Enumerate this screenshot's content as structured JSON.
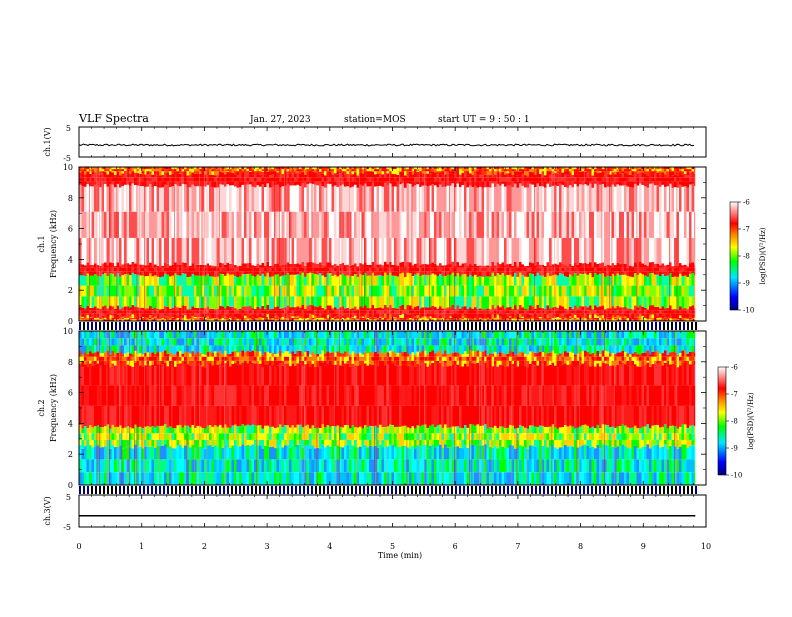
{
  "header": {
    "title": "VLF Spectra",
    "date": "Jan. 27, 2023",
    "station": "station=MOS",
    "start": "start  UT =   9 : 50 : 1"
  },
  "colors": {
    "spectrum_low": "#00007f",
    "spectrum_mid": "#00ff00",
    "spectrum_high": "#ff0000",
    "trace": "#000000"
  },
  "chart_data": [
    {
      "type": "line",
      "ylabel": "ch.1(V)",
      "ylim": [
        -5,
        5
      ],
      "yticks": [
        "5",
        "-5"
      ],
      "x": [
        0,
        9.83
      ],
      "y": [
        -1,
        -1
      ]
    },
    {
      "type": "heatmap",
      "ylabel": "ch.1\nFrequency (kHz)",
      "ylabel_lines": [
        "ch.1",
        "Frequency (kHz)"
      ],
      "ylim": [
        0,
        10
      ],
      "yticks": [
        "0",
        "2",
        "4",
        "6",
        "8",
        "10"
      ],
      "xlim": [
        0,
        10
      ],
      "data_end": 9.83,
      "colorbar": {
        "label": "log(PSD)(V²/Hz)",
        "range": [
          -10,
          -6
        ],
        "ticks": [
          "-6",
          "-7",
          "-8",
          "-9",
          "-10"
        ]
      },
      "bands": [
        {
          "from": 0.0,
          "to": 0.3,
          "level": "mid-high"
        },
        {
          "from": 0.3,
          "to": 0.9,
          "level": "high"
        },
        {
          "from": 0.9,
          "to": 3.0,
          "level": "mid"
        },
        {
          "from": 3.0,
          "to": 3.7,
          "level": "high"
        },
        {
          "from": 3.7,
          "to": 8.8,
          "level": "upper"
        },
        {
          "from": 8.8,
          "to": 9.6,
          "level": "high"
        },
        {
          "from": 9.6,
          "to": 10.0,
          "level": "mid-high"
        }
      ]
    },
    {
      "type": "heatmap",
      "ylabel": "ch.2\nFrequency (kHz)",
      "ylabel_lines": [
        "ch.2",
        "Frequency (kHz)"
      ],
      "ylim": [
        0,
        10
      ],
      "yticks": [
        "0",
        "2",
        "4",
        "6",
        "8",
        "10"
      ],
      "xlim": [
        0,
        10
      ],
      "data_end": 9.83,
      "colorbar": {
        "label": "log(PSD)(V²/Hz)",
        "range": [
          -10,
          -6
        ],
        "ticks": [
          "-6",
          "-7",
          "-8",
          "-9",
          "-10"
        ]
      },
      "bands": [
        {
          "from": 0.0,
          "to": 2.5,
          "level": "low-mid"
        },
        {
          "from": 2.5,
          "to": 3.8,
          "level": "mid"
        },
        {
          "from": 3.8,
          "to": 7.8,
          "level": "high"
        },
        {
          "from": 7.8,
          "to": 8.6,
          "level": "mid-high"
        },
        {
          "from": 8.6,
          "to": 10.0,
          "level": "low-mid"
        }
      ]
    },
    {
      "type": "line",
      "ylabel": "ch.3(V)",
      "ylim": [
        -5,
        5
      ],
      "yticks": [
        "5",
        "-5"
      ],
      "x": [
        0,
        9.83
      ],
      "y": [
        -1.5,
        -1.5
      ]
    }
  ],
  "xaxis": {
    "label": "Time (min)",
    "ticks": [
      "0",
      "1",
      "2",
      "3",
      "4",
      "5",
      "6",
      "7",
      "8",
      "9",
      "10"
    ]
  }
}
